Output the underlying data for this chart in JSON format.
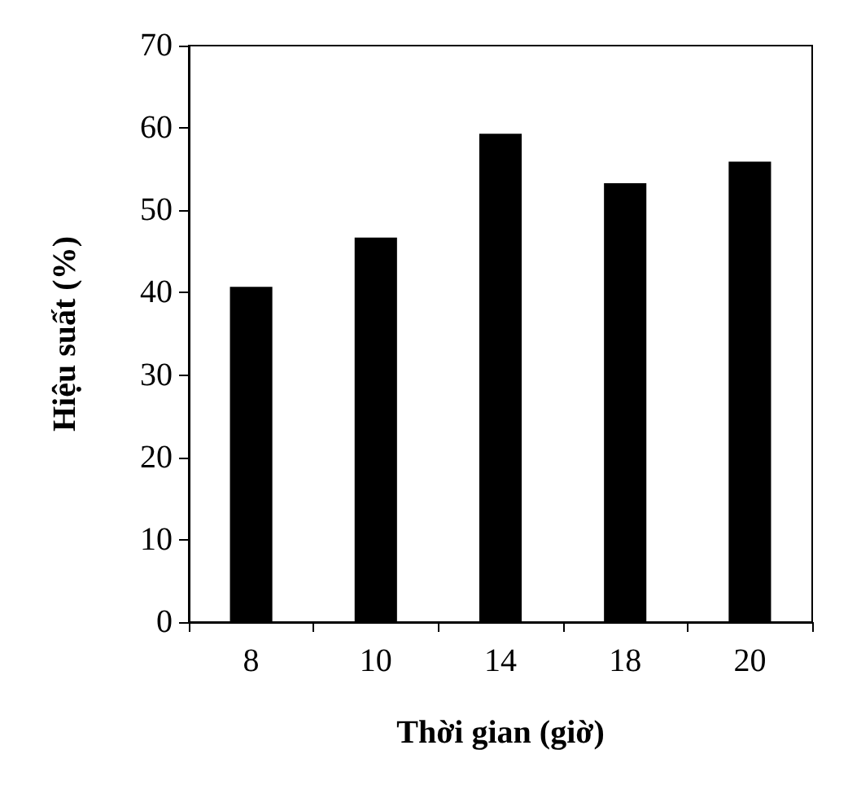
{
  "chart_data": {
    "type": "bar",
    "xlabel": "Thời gian (giờ)",
    "ylabel": "Hiệu suất (%)",
    "categories": [
      "8",
      "10",
      "14",
      "18",
      "20"
    ],
    "values": [
      40.7,
      46.7,
      59.3,
      53.3,
      55.9
    ],
    "color": "#000000",
    "ylim": [
      0,
      70
    ],
    "yticks": [
      0,
      10,
      20,
      30,
      40,
      50,
      60,
      70
    ],
    "grid": false
  }
}
